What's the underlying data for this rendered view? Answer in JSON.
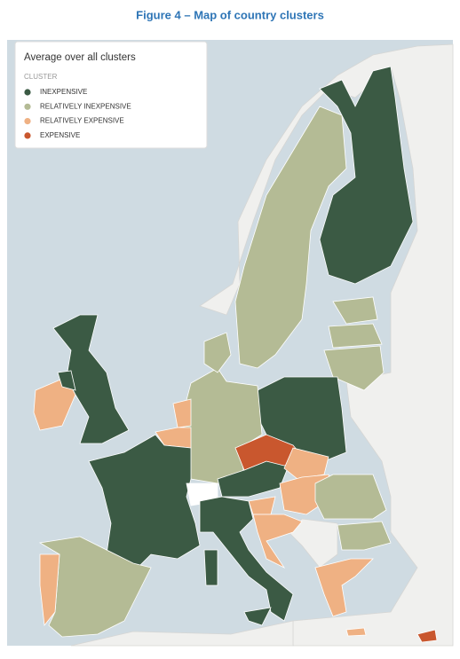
{
  "title": "Figure 4 – Map of country clusters",
  "legend": {
    "title": "Average over all clusters",
    "heading": "CLUSTER",
    "items": [
      {
        "label": "INEXPENSIVE",
        "color": "#3b5a44"
      },
      {
        "label": "RELATIVELY INEXPENSIVE",
        "color": "#b4bb95"
      },
      {
        "label": "RELATIVELY EXPENSIVE",
        "color": "#efb183"
      },
      {
        "label": "EXPENSIVE",
        "color": "#c9572e"
      }
    ]
  }
}
